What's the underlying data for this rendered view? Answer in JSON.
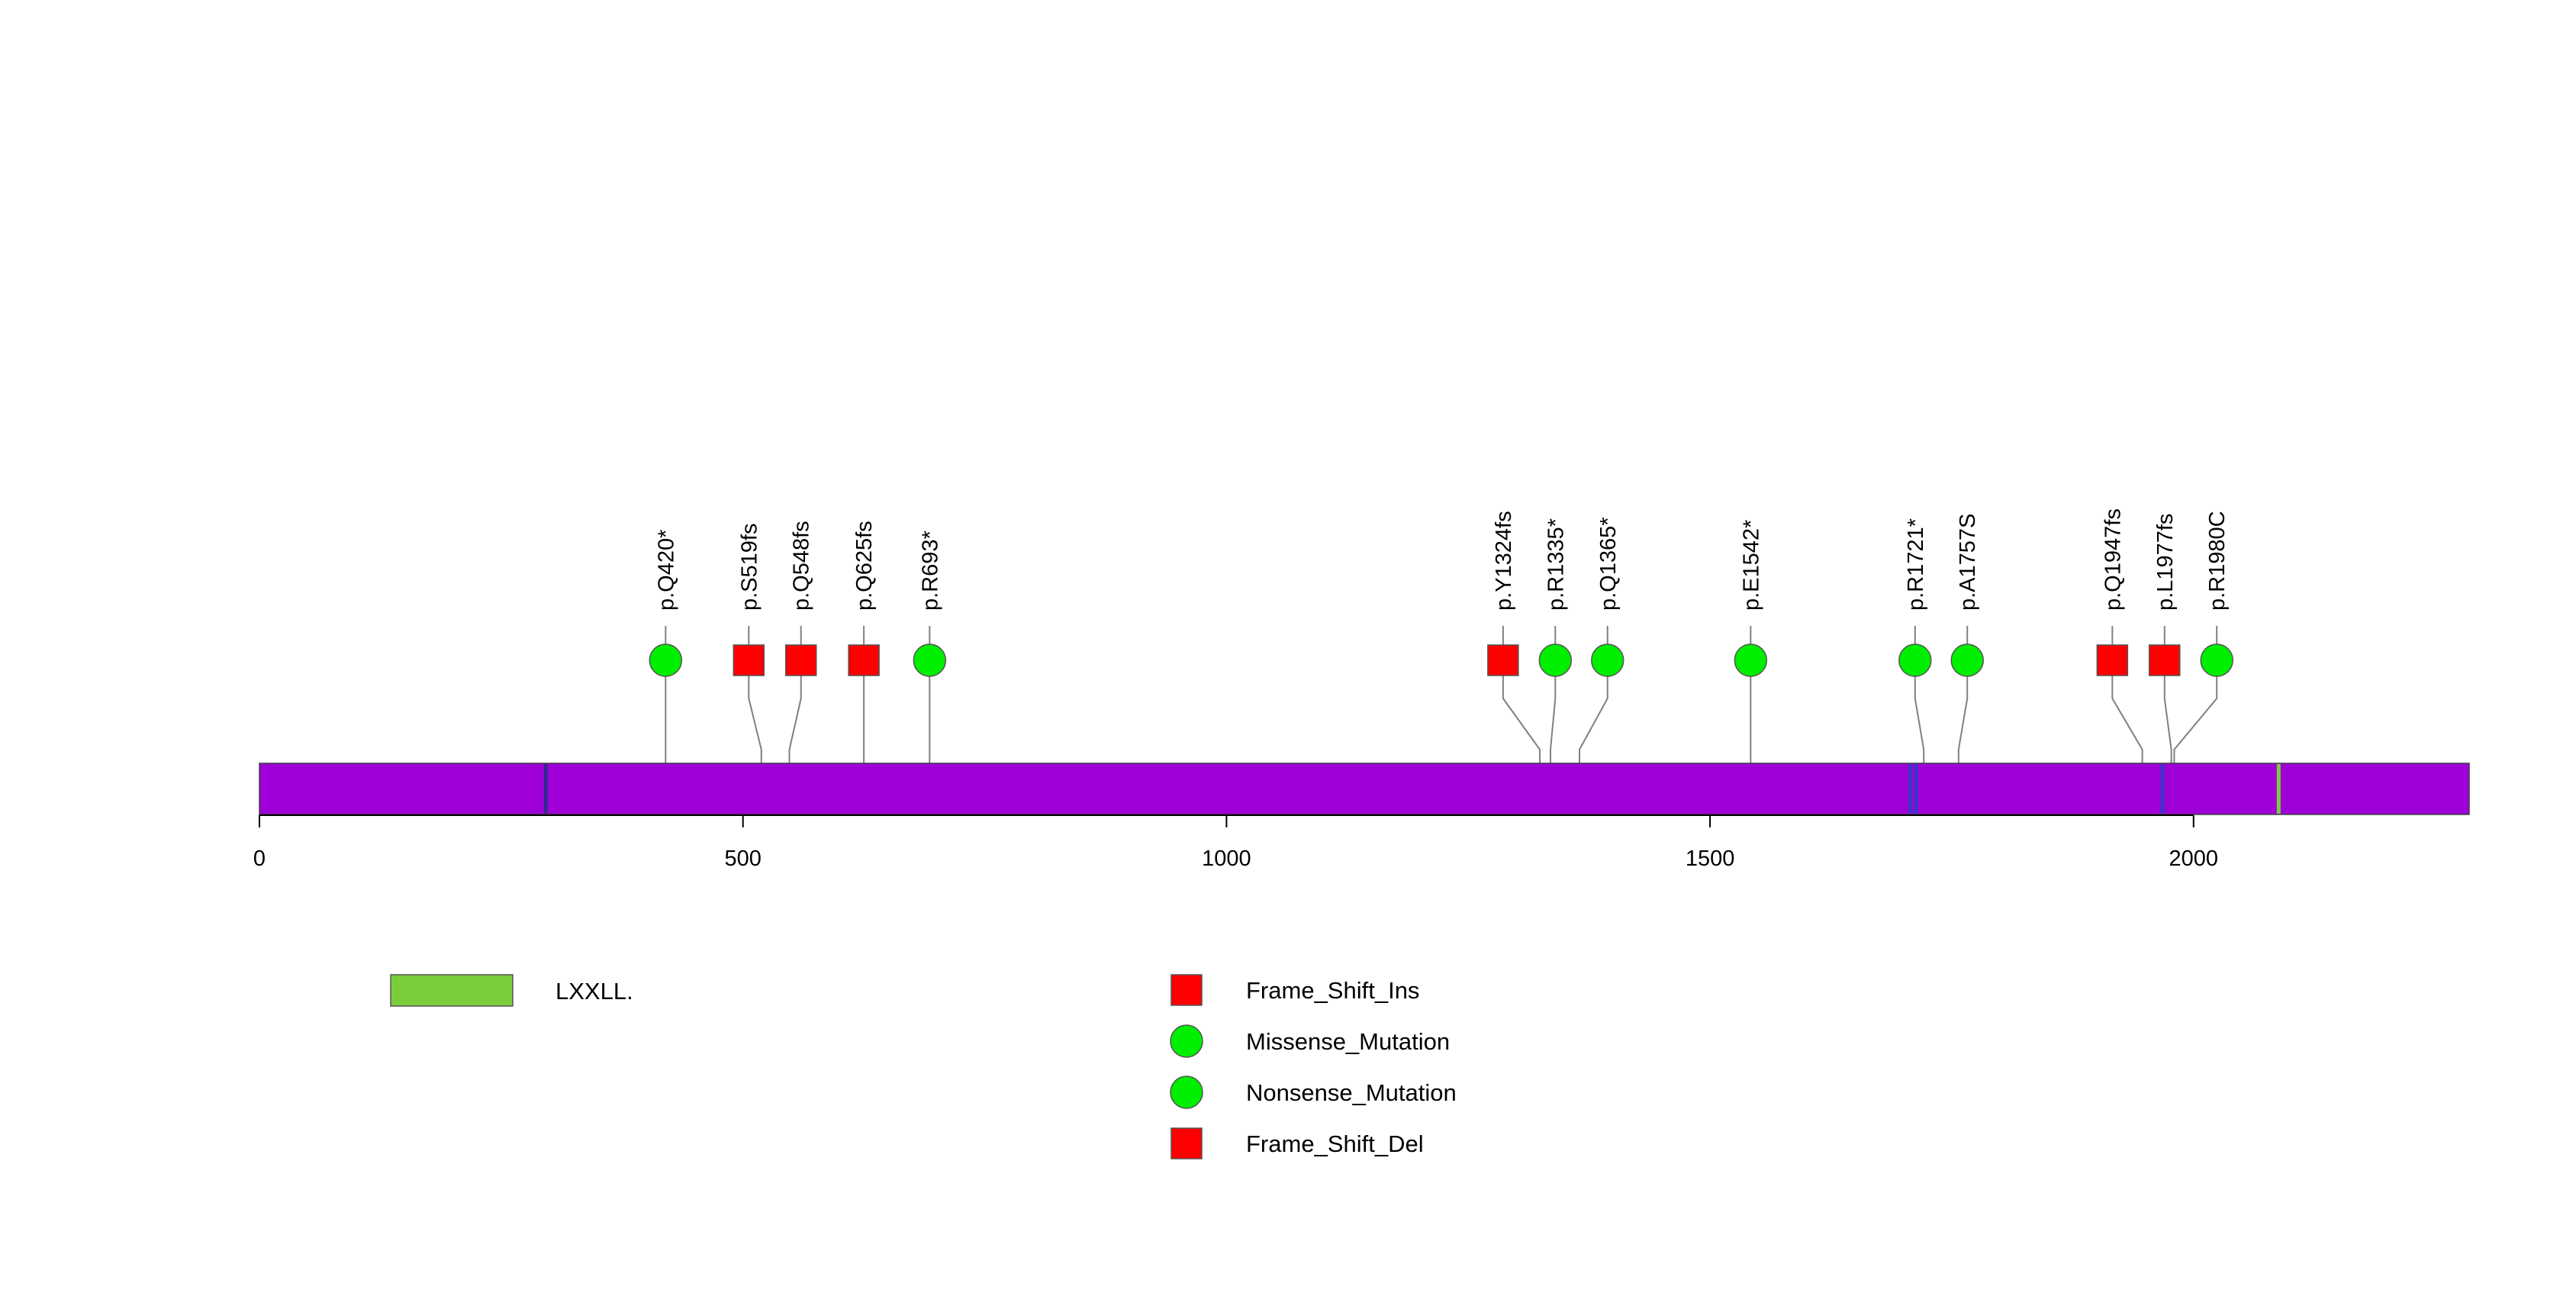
{
  "colors": {
    "protein": "#a000d8",
    "domain_lxxll": "#7ccd3c",
    "square": "#ff0000",
    "circle": "#00ee00",
    "tick_line": "#808080",
    "dark_band": "#302a8a",
    "blue_band": "#3a34c8"
  },
  "axis": {
    "min": 0,
    "max": 2285,
    "ticks": [
      {
        "value": 0,
        "label": "0"
      },
      {
        "value": 500,
        "label": "500"
      },
      {
        "value": 1000,
        "label": "1000"
      },
      {
        "value": 1500,
        "label": "1500"
      },
      {
        "value": 2000,
        "label": "2000"
      }
    ]
  },
  "bands": [
    {
      "value": 296,
      "color": "dark"
    },
    {
      "value": 1707,
      "color": "blue"
    },
    {
      "value": 1713,
      "color": "blue"
    },
    {
      "value": 1968,
      "color": "blue"
    },
    {
      "value": 2088,
      "color": "lxxll"
    }
  ],
  "mutations": [
    {
      "label": "p.Q420*",
      "position": 420,
      "slot": 420,
      "shape": "circle"
    },
    {
      "label": "p.S519fs",
      "position": 519,
      "slot": 506,
      "shape": "square"
    },
    {
      "label": "p.Q548fs",
      "position": 548,
      "slot": 560,
      "shape": "square"
    },
    {
      "label": "p.Q625fs",
      "position": 625,
      "slot": 625,
      "shape": "square"
    },
    {
      "label": "p.R693*",
      "position": 693,
      "slot": 693,
      "shape": "circle"
    },
    {
      "label": "p.Y1324fs",
      "position": 1324,
      "slot": 1286,
      "shape": "square"
    },
    {
      "label": "p.R1335*",
      "position": 1335,
      "slot": 1340,
      "shape": "circle"
    },
    {
      "label": "p.Q1365*",
      "position": 1365,
      "slot": 1394,
      "shape": "circle"
    },
    {
      "label": "p.E1542*",
      "position": 1542,
      "slot": 1542,
      "shape": "circle"
    },
    {
      "label": "p.R1721*",
      "position": 1721,
      "slot": 1712,
      "shape": "circle"
    },
    {
      "label": "p.A1757S",
      "position": 1757,
      "slot": 1766,
      "shape": "circle"
    },
    {
      "label": "p.Q1947fs",
      "position": 1947,
      "slot": 1916,
      "shape": "square"
    },
    {
      "label": "p.L1977fs",
      "position": 1977,
      "slot": 1970,
      "shape": "square"
    },
    {
      "label": "p.R1980C",
      "position": 1980,
      "slot": 2024,
      "shape": "circle"
    }
  ],
  "legend": {
    "domains": [
      {
        "label": "LXXLL.",
        "color": "#7ccd3c"
      }
    ],
    "mutation_types": [
      {
        "label": "Frame_Shift_Ins",
        "shape": "square",
        "color": "#ff0000"
      },
      {
        "label": "Missense_Mutation",
        "shape": "circle",
        "color": "#00ee00"
      },
      {
        "label": "Nonsense_Mutation",
        "shape": "circle",
        "color": "#00ee00"
      },
      {
        "label": "Frame_Shift_Del",
        "shape": "square",
        "color": "#ff0000"
      }
    ]
  }
}
